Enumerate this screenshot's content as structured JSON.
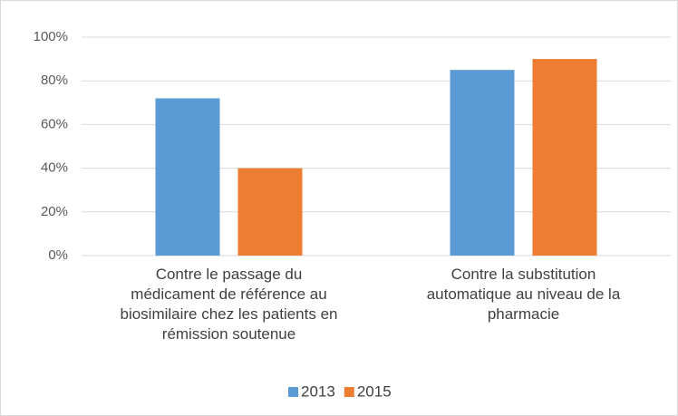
{
  "chart_data": {
    "type": "bar",
    "categories": [
      "Contre le passage du médicament de référence au biosimilaire chez les patients en rémission soutenue",
      "Contre la substitution automatique au niveau de la pharmacie"
    ],
    "series": [
      {
        "name": "2013",
        "color": "#5b9bd5",
        "values": [
          72,
          85
        ]
      },
      {
        "name": "2015",
        "color": "#ed7d31",
        "values": [
          40,
          90
        ]
      }
    ],
    "ylim": [
      0,
      100
    ],
    "yticks": [
      {
        "value": 0,
        "label": "0%"
      },
      {
        "value": 20,
        "label": "20%"
      },
      {
        "value": 40,
        "label": "40%"
      },
      {
        "value": 60,
        "label": "60%"
      },
      {
        "value": 80,
        "label": "80%"
      },
      {
        "value": 100,
        "label": "100%"
      }
    ],
    "grid": true,
    "legend": "bottom"
  }
}
